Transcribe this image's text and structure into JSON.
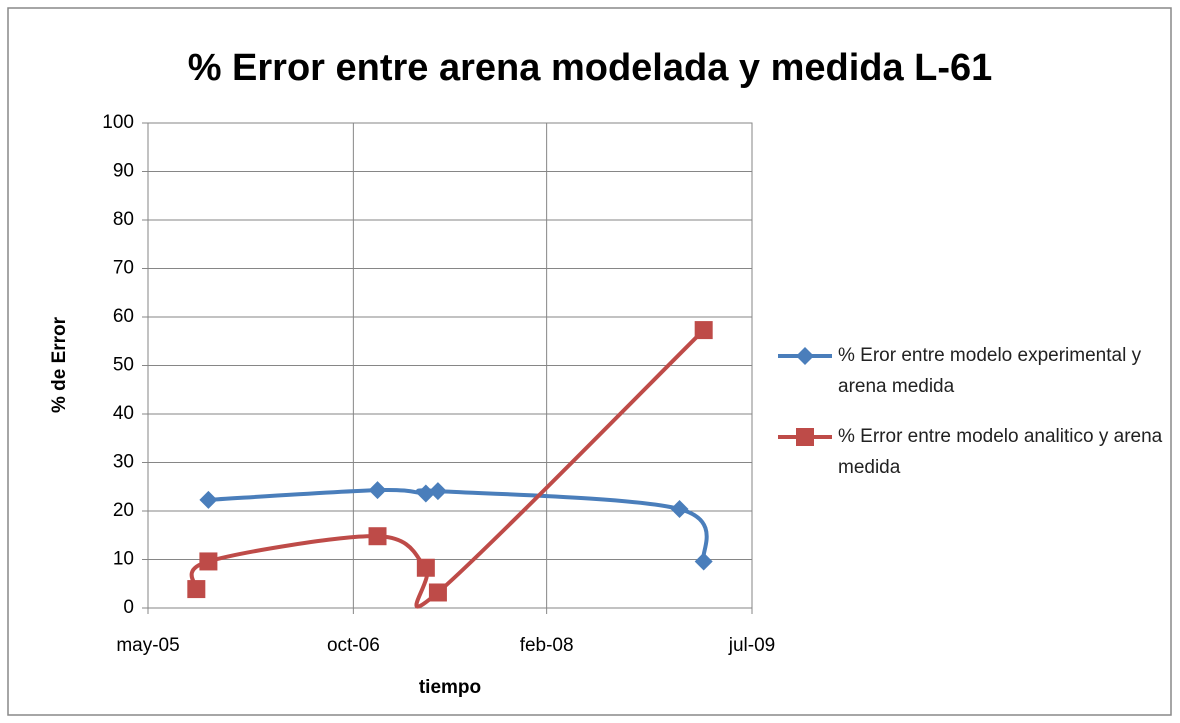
{
  "chart_data": {
    "type": "line",
    "title": "% Error entre arena modelada y medida L-61",
    "x_label": "tiempo",
    "y_label": "% de Error",
    "x": [
      "2005-10",
      "2006-12",
      "2007-04",
      "2007-05",
      "2009-01",
      "2009-03"
    ],
    "series": [
      {
        "name": "% Eror entre modelo experimental y arena medida",
        "color": "#4a7ebb",
        "marker": "diamond",
        "x": [
          "2005-10",
          "2006-12",
          "2007-04",
          "2007-05",
          "2009-01",
          "2009-03"
        ],
        "values": [
          22.3,
          24.3,
          23.6,
          24.1,
          20.4,
          9.6
        ]
      },
      {
        "name": "% Error entre modelo analitico y arena medida",
        "color": "#be4b48",
        "marker": "square",
        "x": [
          "2005-09",
          "2005-10",
          "2006-12",
          "2007-04",
          "2007-05",
          "2009-03"
        ],
        "values": [
          3.9,
          9.6,
          14.8,
          8.3,
          3.2,
          57.3
        ]
      }
    ],
    "xlim": [
      "2005-05",
      "2009-07"
    ],
    "xticks": [
      {
        "value": "2005-05",
        "label": "may-05"
      },
      {
        "value": "2006-10",
        "label": "oct-06"
      },
      {
        "value": "2008-02",
        "label": "feb-08"
      },
      {
        "value": "2009-07",
        "label": "jul-09"
      }
    ],
    "ylim": [
      0,
      100
    ],
    "yticks": [
      0,
      10,
      20,
      30,
      40,
      50,
      60,
      70,
      80,
      90,
      100
    ],
    "grid": true,
    "smooth": true,
    "legend": "right"
  }
}
